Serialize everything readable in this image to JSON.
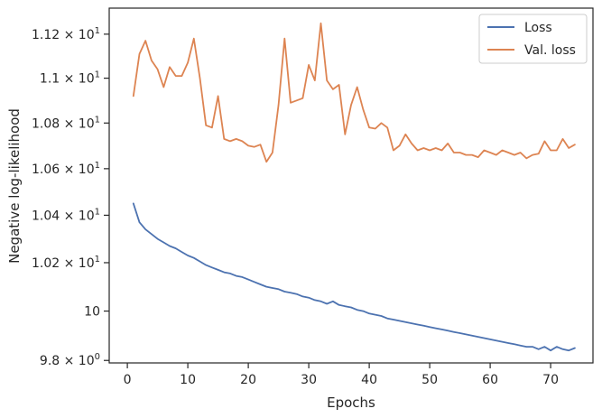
{
  "chart_data": {
    "type": "line",
    "title": "",
    "xlabel": "Epochs",
    "ylabel": "Negative log-likelihood",
    "yscale": "log",
    "xlim": [
      -3,
      77
    ],
    "ylim": [
      9.79,
      11.32
    ],
    "xticks": [
      0,
      10,
      20,
      30,
      40,
      50,
      60,
      70
    ],
    "yticks": [
      {
        "value": 9.8,
        "base": "9.8 × 10",
        "exp": "0"
      },
      {
        "value": 10.0,
        "base": "10",
        "exp": ""
      },
      {
        "value": 10.2,
        "base": "1.02 × 10",
        "exp": "1"
      },
      {
        "value": 10.4,
        "base": "1.04 × 10",
        "exp": "1"
      },
      {
        "value": 10.6,
        "base": "1.06 × 10",
        "exp": "1"
      },
      {
        "value": 10.8,
        "base": "1.08 × 10",
        "exp": "1"
      },
      {
        "value": 11.0,
        "base": "1.1 × 10",
        "exp": "1"
      },
      {
        "value": 11.2,
        "base": "1.12 × 10",
        "exp": "1"
      }
    ],
    "grid": false,
    "legend_position": "top-right",
    "x": [
      1,
      2,
      3,
      4,
      5,
      6,
      7,
      8,
      9,
      10,
      11,
      12,
      13,
      14,
      15,
      16,
      17,
      18,
      19,
      20,
      21,
      22,
      23,
      24,
      25,
      26,
      27,
      28,
      29,
      30,
      31,
      32,
      33,
      34,
      35,
      36,
      37,
      38,
      39,
      40,
      41,
      42,
      43,
      44,
      45,
      46,
      47,
      48,
      49,
      50,
      51,
      52,
      53,
      54,
      55,
      56,
      57,
      58,
      59,
      60,
      61,
      62,
      63,
      64,
      65,
      66,
      67,
      68,
      69,
      70,
      71,
      72,
      73,
      74
    ],
    "series": [
      {
        "name": "Loss",
        "color": "#4c72b0",
        "values": [
          10.45,
          10.37,
          10.34,
          10.32,
          10.3,
          10.285,
          10.27,
          10.26,
          10.245,
          10.23,
          10.22,
          10.205,
          10.19,
          10.18,
          10.17,
          10.16,
          10.155,
          10.145,
          10.14,
          10.13,
          10.12,
          10.11,
          10.1,
          10.095,
          10.09,
          10.08,
          10.075,
          10.07,
          10.06,
          10.055,
          10.045,
          10.04,
          10.03,
          10.04,
          10.025,
          10.02,
          10.015,
          10.005,
          10.0,
          9.99,
          9.985,
          9.98,
          9.97,
          9.965,
          9.96,
          9.955,
          9.95,
          9.945,
          9.94,
          9.935,
          9.93,
          9.925,
          9.92,
          9.915,
          9.91,
          9.905,
          9.9,
          9.895,
          9.89,
          9.885,
          9.88,
          9.875,
          9.87,
          9.865,
          9.86,
          9.855,
          9.855,
          9.845,
          9.855,
          9.84,
          9.855,
          9.845,
          9.84,
          9.85
        ]
      },
      {
        "name": "Val. loss",
        "color": "#dd8452",
        "values": [
          10.92,
          11.11,
          11.17,
          11.08,
          11.04,
          10.96,
          11.05,
          11.01,
          11.01,
          11.07,
          11.18,
          11.0,
          10.79,
          10.78,
          10.92,
          10.73,
          10.72,
          10.73,
          10.72,
          10.7,
          10.695,
          10.705,
          10.63,
          10.67,
          10.88,
          11.18,
          10.89,
          10.9,
          10.91,
          11.06,
          10.99,
          11.25,
          10.99,
          10.95,
          10.97,
          10.75,
          10.88,
          10.96,
          10.86,
          10.78,
          10.775,
          10.8,
          10.78,
          10.68,
          10.7,
          10.75,
          10.71,
          10.68,
          10.69,
          10.68,
          10.69,
          10.68,
          10.71,
          10.67,
          10.67,
          10.66,
          10.66,
          10.65,
          10.68,
          10.67,
          10.66,
          10.68,
          10.67,
          10.66,
          10.67,
          10.645,
          10.66,
          10.665,
          10.72,
          10.68,
          10.68,
          10.73,
          10.69,
          10.705
        ]
      }
    ]
  }
}
